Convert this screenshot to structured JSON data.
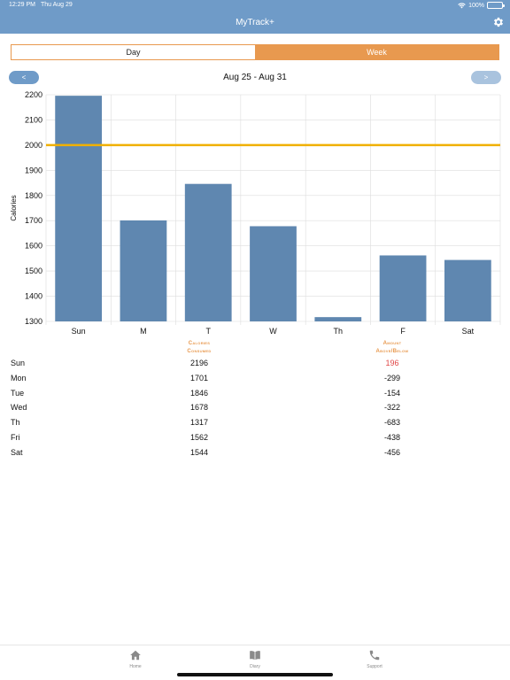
{
  "status_bar": {
    "time": "12:29 PM",
    "date": "Thu Aug 29",
    "battery": "100%"
  },
  "header": {
    "title": "MyTrack+"
  },
  "segments": {
    "day": "Day",
    "week": "Week",
    "selected": "Week"
  },
  "week_nav": {
    "prev": "<",
    "range": "Aug 25 - Aug 31",
    "next": ">"
  },
  "chart_data": {
    "type": "bar",
    "title": "",
    "xlabel": "",
    "ylabel": "Calories",
    "categories": [
      "Sun",
      "M",
      "T",
      "W",
      "Th",
      "F",
      "Sat"
    ],
    "values": [
      2196,
      1701,
      1846,
      1678,
      1317,
      1562,
      1544
    ],
    "ylim": [
      1300,
      2200
    ],
    "yticks": [
      1300,
      1400,
      1500,
      1600,
      1700,
      1800,
      1900,
      2000,
      2100,
      2200
    ],
    "target_line": 2000,
    "grid": true,
    "colors": {
      "bar": "#5f87b0",
      "target": "#f0b000",
      "grid": "#dddddd"
    }
  },
  "table": {
    "col_calories": [
      "Calories",
      "Consumed"
    ],
    "col_amount": [
      "Amount",
      "Above/Below"
    ],
    "rows": [
      {
        "day": "Sun",
        "calories": "2196",
        "amount": "196"
      },
      {
        "day": "Mon",
        "calories": "1701",
        "amount": "-299"
      },
      {
        "day": "Tue",
        "calories": "1846",
        "amount": "-154"
      },
      {
        "day": "Wed",
        "calories": "1678",
        "amount": "-322"
      },
      {
        "day": "Th",
        "calories": "1317",
        "amount": "-683"
      },
      {
        "day": "Fri",
        "calories": "1562",
        "amount": "-438"
      },
      {
        "day": "Sat",
        "calories": "1544",
        "amount": "-456"
      }
    ]
  },
  "tabbar": {
    "home": {
      "label": "Home",
      "icon": "home-icon"
    },
    "diary": {
      "label": "Diary",
      "icon": "book-icon"
    },
    "support": {
      "label": "Support",
      "icon": "phone-icon"
    }
  },
  "colors": {
    "header": "#6f9bc8",
    "accent": "#e8994f",
    "positive": "#e04848"
  }
}
